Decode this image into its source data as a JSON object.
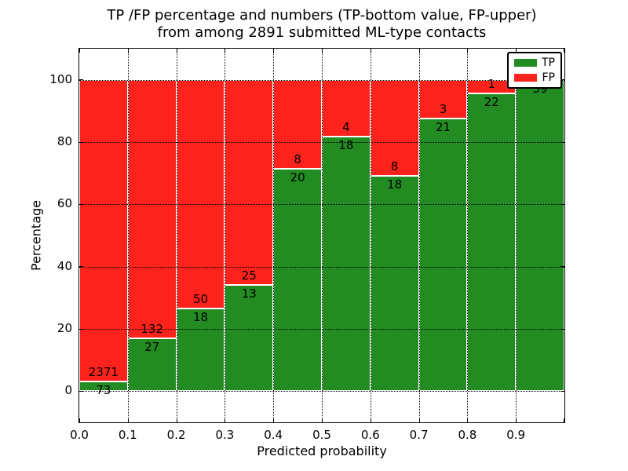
{
  "chart_data": {
    "type": "bar",
    "stacked": true,
    "title_line1": "TP /FP percentage and numbers (TP-bottom value, FP-upper)",
    "title_line2": "from among 2891 submitted ML-type contacts",
    "xlabel": "Predicted probability",
    "ylabel": "Percentage",
    "xlim": [
      0,
      1
    ],
    "ylim": [
      -10,
      110
    ],
    "bin_width": 0.1,
    "x_ticks": [
      {
        "v": 0.0,
        "label": "0.0"
      },
      {
        "v": 0.1,
        "label": "0.1"
      },
      {
        "v": 0.2,
        "label": "0.2"
      },
      {
        "v": 0.3,
        "label": "0.3"
      },
      {
        "v": 0.4,
        "label": "0.4"
      },
      {
        "v": 0.5,
        "label": "0.5"
      },
      {
        "v": 0.6,
        "label": "0.6"
      },
      {
        "v": 0.7,
        "label": "0.7"
      },
      {
        "v": 0.8,
        "label": "0.8"
      },
      {
        "v": 0.9,
        "label": "0.9"
      }
    ],
    "y_ticks": [
      0,
      20,
      40,
      60,
      80,
      100
    ],
    "grid_style": "dotted",
    "legend_position": "upper right",
    "legend": [
      {
        "label": "TP",
        "color": "#228B22"
      },
      {
        "label": "FP",
        "color": "#FB231C"
      }
    ],
    "series": [
      {
        "name": "TP",
        "position": "bottom",
        "counts": [
          73,
          27,
          18,
          13,
          20,
          18,
          18,
          21,
          22,
          59
        ]
      },
      {
        "name": "FP",
        "position": "upper",
        "counts": [
          2371,
          132,
          50,
          25,
          8,
          4,
          8,
          3,
          1,
          0
        ]
      }
    ],
    "tp_percent_heights": [
      3.0,
      17.0,
      26.5,
      34.2,
      71.4,
      81.8,
      69.2,
      87.5,
      95.7,
      100.0
    ]
  }
}
